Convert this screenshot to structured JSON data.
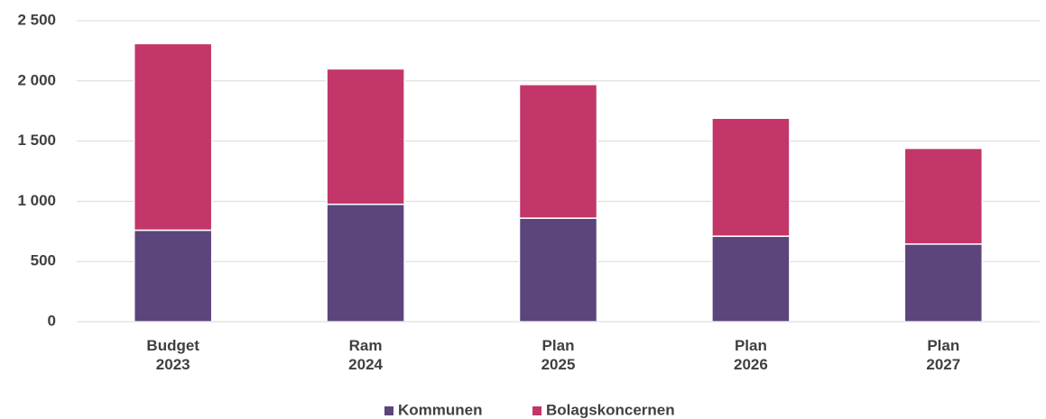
{
  "chart_data": {
    "type": "stacked_bar",
    "categories": [
      [
        "Budget",
        "2023"
      ],
      [
        "Ram",
        "2024"
      ],
      [
        "Plan",
        "2025"
      ],
      [
        "Plan",
        "2026"
      ],
      [
        "Plan",
        "2027"
      ]
    ],
    "series": [
      {
        "name": "Kommunen",
        "color": "#5b457c",
        "values": [
          760,
          975,
          860,
          710,
          645
        ]
      },
      {
        "name": "Bolagskoncernen",
        "color": "#c2366a",
        "values": [
          1550,
          1125,
          1110,
          980,
          795
        ]
      }
    ],
    "ylim": [
      0,
      2500
    ],
    "yticks": [
      0,
      500,
      {
        "value": 1000,
        "label": "1 000"
      },
      {
        "value": 1500,
        "label": "1 500"
      },
      {
        "value": 2000,
        "label": "2 000"
      },
      {
        "value": 2500,
        "label": "2 500"
      }
    ],
    "grid": true,
    "legend": "bottom"
  }
}
